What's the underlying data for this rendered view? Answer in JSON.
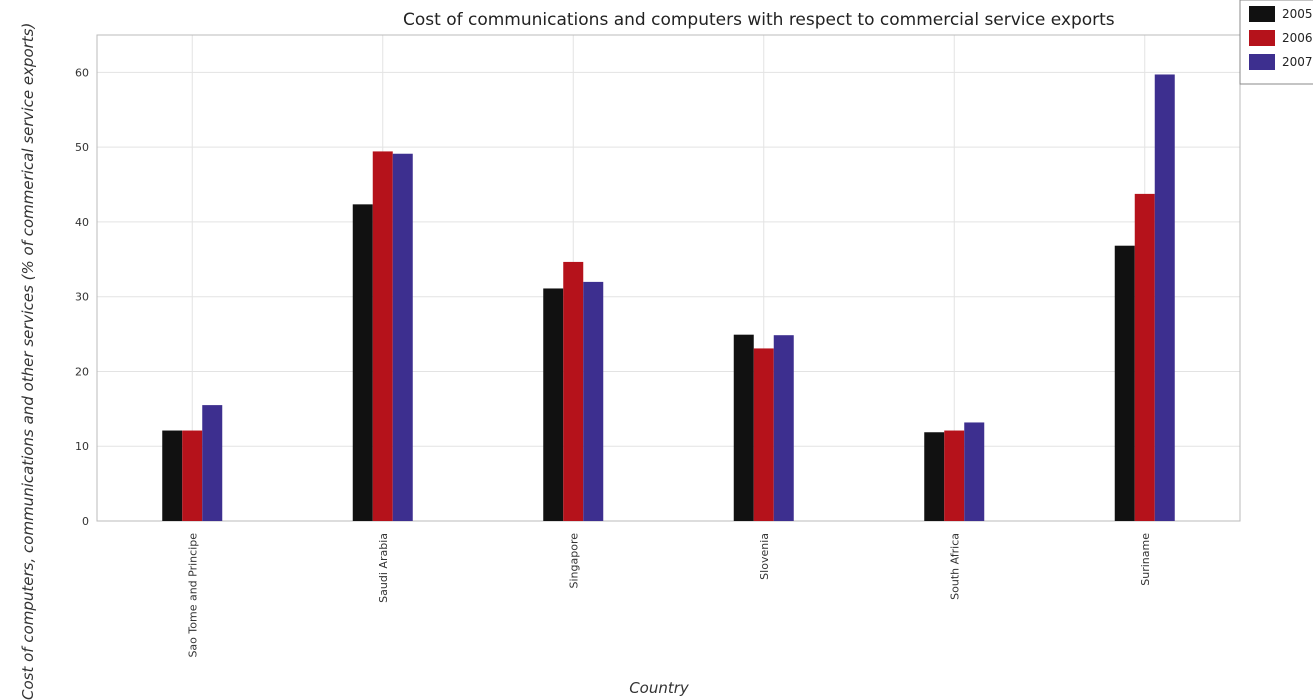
{
  "chart_data": {
    "type": "bar",
    "title": "Cost of communications and computers with respect to commercial service exports",
    "xlabel": "Country",
    "ylabel": "Cost of computers, communications and other services (% of commerical service exports)",
    "categories": [
      "Sao Tome and Principe",
      "Saudi Arabia",
      "Singapore",
      "Slovenia",
      "South Africa",
      "Suriname"
    ],
    "series": [
      {
        "name": "2005",
        "color": "#111111",
        "values": [
          12.1,
          42.35,
          31.1,
          24.92,
          11.87,
          36.82
        ]
      },
      {
        "name": "2006",
        "color": "#b5121b",
        "values": [
          12.1,
          49.43,
          34.65,
          23.08,
          12.1,
          43.75
        ]
      },
      {
        "name": "2007",
        "color": "#3d2f8f",
        "values": [
          15.5,
          49.12,
          31.98,
          24.85,
          13.18,
          59.72
        ]
      }
    ],
    "ylim": [
      0,
      65
    ],
    "yticks": [
      0,
      10,
      20,
      30,
      40,
      50,
      60
    ],
    "grid": true,
    "legend_position": "top-right"
  }
}
